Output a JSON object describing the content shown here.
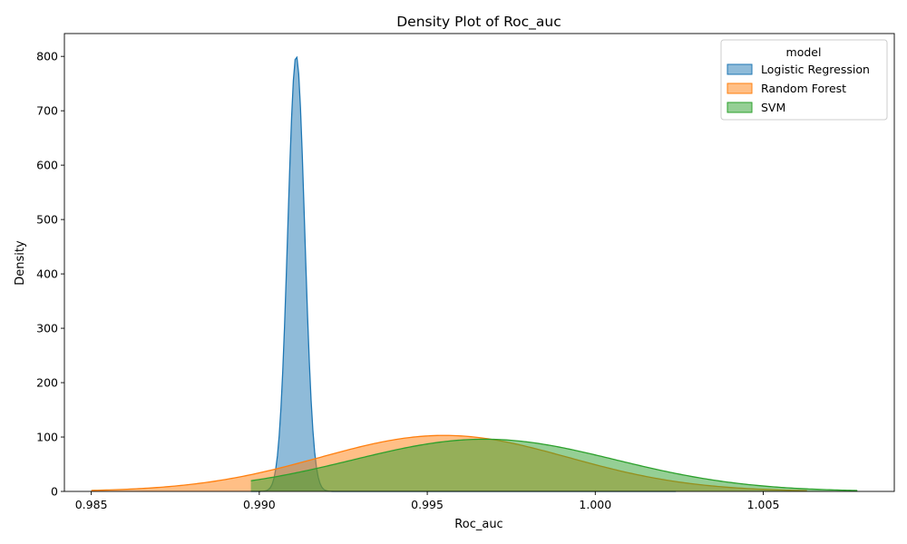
{
  "chart_data": {
    "type": "area",
    "title": "Density Plot of Roc_auc",
    "xlabel": "Roc_auc",
    "ylabel": "Density",
    "xlim": [
      0.9842,
      1.0089
    ],
    "ylim": [
      0,
      842
    ],
    "xticks": [
      0.985,
      0.99,
      0.995,
      1.0,
      1.005
    ],
    "xtick_labels": [
      "0.985",
      "0.990",
      "0.995",
      "1.000",
      "1.005"
    ],
    "yticks": [
      0,
      100,
      200,
      300,
      400,
      500,
      600,
      700,
      800
    ],
    "ytick_labels": [
      "0",
      "100",
      "200",
      "300",
      "400",
      "500",
      "600",
      "700",
      "800"
    ],
    "grid": false,
    "legend": {
      "title": "model",
      "placement": "top-right"
    },
    "series": [
      {
        "name": "Logistic Regression",
        "color": "#1f77b4",
        "x_range": [
          0.98975,
          1.0024
        ],
        "gaussian": {
          "mean": 0.9911,
          "peak": 801,
          "sigma": 0.00025
        }
      },
      {
        "name": "Random Forest",
        "color": "#ff7f0e",
        "x_range": [
          0.985,
          1.0063
        ],
        "gaussian": {
          "mean": 0.9955,
          "peak": 103,
          "sigma": 0.0037
        }
      },
      {
        "name": "SVM",
        "color": "#2ca02c",
        "x_range": [
          0.98975,
          1.0078
        ],
        "gaussian": {
          "mean": 0.9967,
          "peak": 96,
          "sigma": 0.0039
        }
      }
    ]
  }
}
